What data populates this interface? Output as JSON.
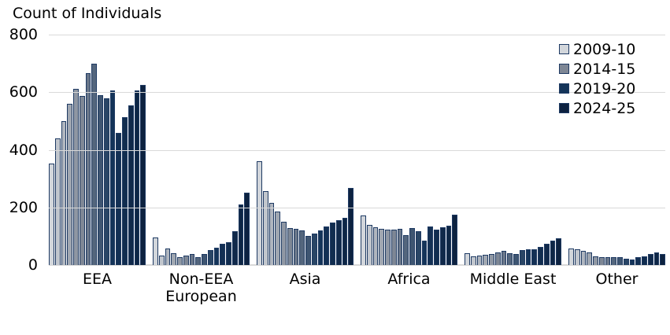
{
  "chart_data": {
    "type": "bar",
    "title": "Count of Individuals",
    "xlabel": "",
    "ylabel": "Count of Individuals",
    "ylim": [
      0,
      800
    ],
    "yticks": [
      0,
      200,
      400,
      600,
      800
    ],
    "grid": true,
    "legend_position": "top-right",
    "bars_per_group": 16,
    "legend": [
      {
        "label": "2009-10",
        "color": "#d2d6db",
        "year_index": 0
      },
      {
        "label": "2014-15",
        "color": "#7e8795",
        "year_index": 5
      },
      {
        "label": "2019-20",
        "color": "#143459",
        "year_index": 10
      },
      {
        "label": "2024-25",
        "color": "#0d2240",
        "year_index": 15
      }
    ],
    "categories": [
      "EEA",
      "Non-EEA European",
      "Asia",
      "Africa",
      "Middle East",
      "Other"
    ],
    "groups": [
      {
        "category": "EEA",
        "values": [
          352,
          440,
          500,
          560,
          612,
          588,
          665,
          698,
          590,
          580,
          605,
          460,
          512,
          555,
          605,
          625
        ]
      },
      {
        "category": "Non-EEA European",
        "values": [
          95,
          32,
          58,
          40,
          26,
          32,
          38,
          28,
          38,
          53,
          60,
          73,
          80,
          118,
          210,
          252
        ]
      },
      {
        "category": "Asia",
        "values": [
          360,
          258,
          215,
          185,
          150,
          128,
          126,
          120,
          100,
          110,
          120,
          133,
          147,
          155,
          165,
          268
        ]
      },
      {
        "category": "Africa",
        "values": [
          173,
          140,
          132,
          126,
          122,
          124,
          127,
          104,
          129,
          117,
          86,
          135,
          124,
          131,
          136,
          175
        ]
      },
      {
        "category": "Middle East",
        "values": [
          40,
          31,
          34,
          36,
          39,
          44,
          48,
          41,
          37,
          51,
          55,
          55,
          64,
          75,
          84,
          92
        ]
      },
      {
        "category": "Other",
        "values": [
          57,
          55,
          48,
          45,
          30,
          27,
          28,
          28,
          26,
          22,
          20,
          27,
          29,
          38,
          45,
          39
        ]
      }
    ]
  },
  "colors": {
    "bar_border": "#1e3a63",
    "gridline": "#d9d9d9",
    "text": "#000000",
    "background": "#ffffff"
  }
}
